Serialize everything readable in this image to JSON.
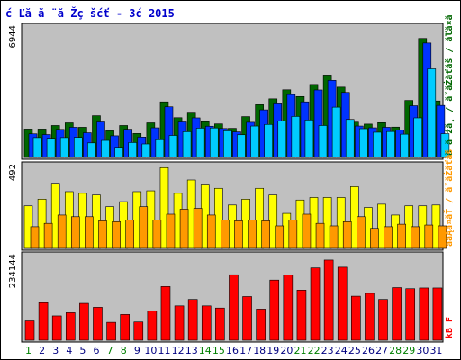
{
  "chart_data": {
    "title": "ć Ľă  ă ¨ă Žç šćť  - 3ć   2015",
    "type": "bar",
    "categories": [
      "1",
      "2",
      "3",
      "4",
      "5",
      "6",
      "7",
      "8",
      "9",
      "10",
      "11",
      "12",
      "13",
      "14",
      "15",
      "16",
      "17",
      "18",
      "19",
      "20",
      "21",
      "22",
      "23",
      "24",
      "25",
      "26",
      "27",
      "28",
      "29",
      "30",
      "31"
    ],
    "category_colors": [
      "#008000",
      "#000080",
      "#000080",
      "#000080",
      "#000080",
      "#000080",
      "#008000",
      "#008000",
      "#000080",
      "#000080",
      "#000080",
      "#000080",
      "#000080",
      "#008000",
      "#008000",
      "#000080",
      "#000080",
      "#000080",
      "#000080",
      "#000080",
      "#008000",
      "#008000",
      "#000080",
      "#000080",
      "#000080",
      "#000080",
      "#000080",
      "#008000",
      "#008000",
      "#000080",
      "#000080"
    ],
    "panels": [
      {
        "ymax": 6944,
        "ytick_label": "6944",
        "side_label": "ă ă źă¸ / ă˘ăŻăťăš / ăľă¤ă",
        "series": [
          {
            "name": "ă ă źă¸",
            "color": "#006600",
            "values": [
              1600,
              1600,
              1800,
              1950,
              1700,
              2350,
              1500,
              1800,
              1350,
              1950,
              3130,
              2240,
              2500,
              2010,
              1890,
              1640,
              2300,
              2970,
              3300,
              3810,
              3430,
              4110,
              4640,
              3960,
              1990,
              1880,
              1960,
              1710,
              3210,
              6700,
              3180
            ]
          },
          {
            "name": "ă˘ăŻăťăš",
            "color": "#0033ff",
            "values": [
              1330,
              1290,
              1580,
              1700,
              1390,
              2000,
              1220,
              1590,
              1150,
              1670,
              2850,
              2000,
              2230,
              1760,
              1630,
              1440,
              1980,
              2680,
              3020,
              3540,
              3130,
              3800,
              4340,
              3660,
              1770,
              1670,
              1700,
              1550,
              2910,
              6440,
              2930
            ]
          },
          {
            "name": "ăľă¤ă",
            "color": "#00ccff",
            "values": [
              1120,
              1080,
              1120,
              1130,
              820,
              960,
              570,
              840,
              760,
              1000,
              1240,
              1450,
              1650,
              1660,
              1500,
              1280,
              1770,
              1860,
              2060,
              2310,
              2110,
              1800,
              2830,
              2140,
              1620,
              1420,
              1460,
              1310,
              2230,
              4990,
              1340
            ]
          }
        ]
      },
      {
        "ymax": 492,
        "ytick_label": "492",
        "side_label": "ăăĄă¤ăŤ / ă˘ăŻăťăš",
        "series": [
          {
            "name": "ăăĄă¤ăŤ",
            "color": "#ffff00",
            "values": [
              255,
              295,
              390,
              340,
              330,
              320,
              250,
              280,
              340,
              345,
              484,
              330,
              410,
              380,
              360,
              260,
              295,
              360,
              320,
              210,
              290,
              305,
              305,
              305,
              370,
              245,
              265,
              200,
              255,
              255,
              260
            ]
          },
          {
            "name": "ăľă¤ă",
            "color": "#ff9900",
            "values": [
              130,
              150,
              200,
              190,
              190,
              165,
              160,
              170,
              250,
              170,
              205,
              235,
              240,
              200,
              170,
              165,
              170,
              165,
              135,
              170,
              205,
              150,
              135,
              160,
              190,
              120,
              130,
              145,
              130,
              140,
              135
            ]
          }
        ]
      },
      {
        "ymax": 234144,
        "ytick_label": "234144",
        "side_label": "kB F",
        "series": [
          {
            "name": "kB F",
            "color": "#ff0000",
            "values": [
              54000,
              105000,
              68000,
              77000,
              103000,
              92000,
              50000,
              72000,
              51000,
              82000,
              150000,
              96000,
              114000,
              96000,
              90000,
              183000,
              122000,
              87000,
              168000,
              182000,
              140000,
              202000,
              224000,
              204000,
              123000,
              131000,
              114000,
              147000,
              144000,
              146000,
              146000
            ]
          }
        ]
      }
    ]
  }
}
